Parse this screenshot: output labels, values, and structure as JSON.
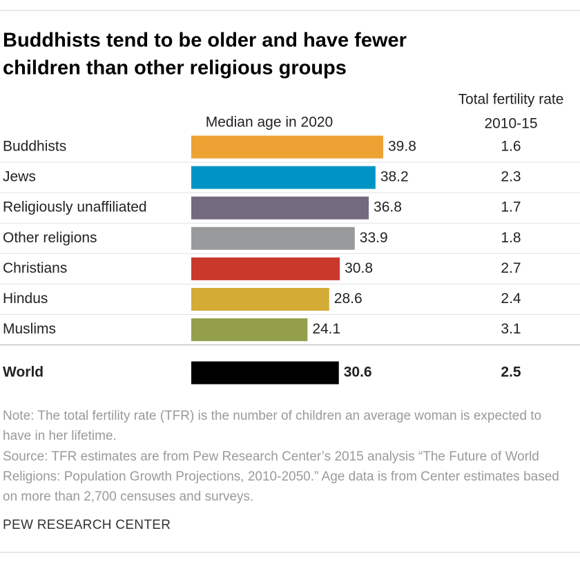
{
  "chart_data": {
    "type": "bar",
    "title_lines": [
      "Buddhists tend to be older and have fewer",
      "children than other religious groups"
    ],
    "value_header": "Median age in 2020",
    "fertility_header": [
      "Total fertility rate",
      "2010-15"
    ],
    "categories": [
      "Buddhists",
      "Jews",
      "Religiously unaffiliated",
      "Other religions",
      "Christians",
      "Hindus",
      "Muslims"
    ],
    "values": [
      39.8,
      38.2,
      36.8,
      33.9,
      30.8,
      28.6,
      24.1
    ],
    "colors": [
      "#eda233",
      "#0094c4",
      "#736a80",
      "#999a9c",
      "#c9392b",
      "#d4ab35",
      "#939f4b"
    ],
    "fertility_rates": [
      1.6,
      2.3,
      1.7,
      1.8,
      2.7,
      2.4,
      3.1
    ],
    "total": {
      "label": "World",
      "value": 30.6,
      "fertility_rate": 2.5,
      "color": "#000000"
    },
    "note": "Note: The total fertility rate (TFR) is the number of children an average woman is expected to have in her lifetime.",
    "source": "Source: TFR estimates are from Pew Research Center’s 2015 analysis “The Future of World Religions: Population Growth Projections, 2010-2050.” Age data is from Center estimates based on more than 2,700 censuses and surveys.",
    "credit": "PEW RESEARCH CENTER"
  }
}
